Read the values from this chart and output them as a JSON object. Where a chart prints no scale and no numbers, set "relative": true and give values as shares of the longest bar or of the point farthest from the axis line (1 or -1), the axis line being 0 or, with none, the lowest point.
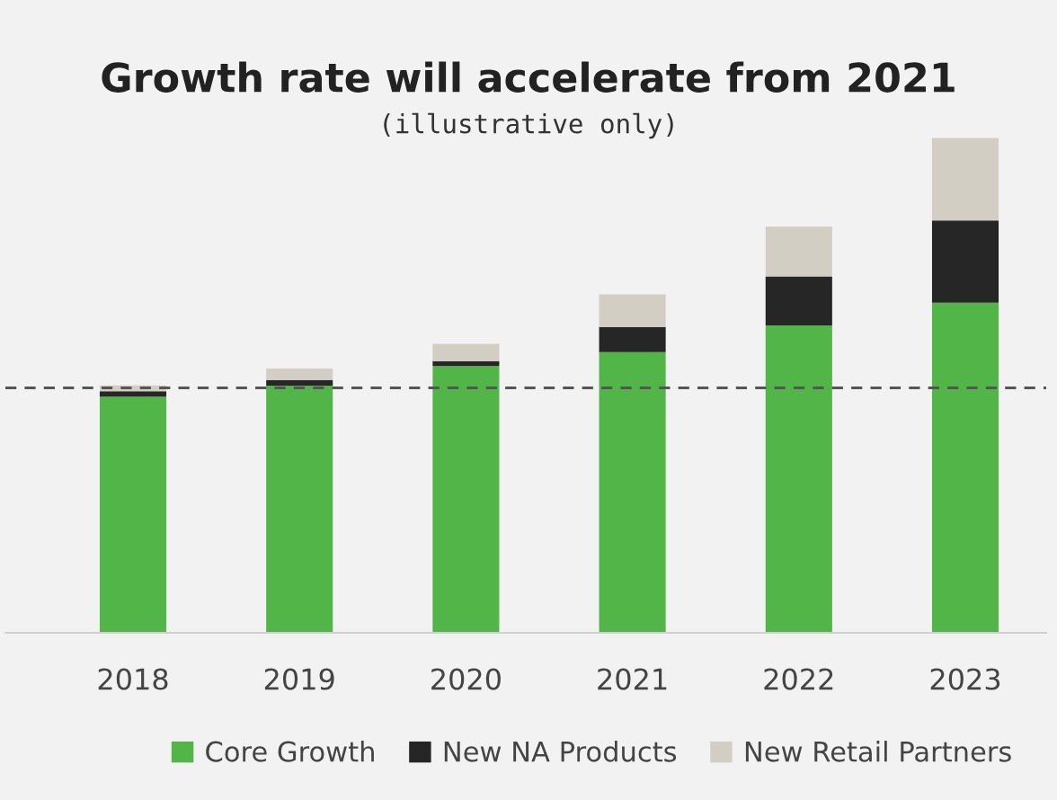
{
  "chart_data": {
    "type": "bar",
    "title": "Growth rate will accelerate from 2021",
    "subtitle": "(illustrative only)",
    "categories": [
      "2018",
      "2019",
      "2020",
      "2021",
      "2022",
      "2023"
    ],
    "stacked": true,
    "relative": true,
    "legend": "bottom",
    "grid": false,
    "series": [
      {
        "name": "Core Growth",
        "color": "#52b548",
        "values": [
          0.477,
          0.499,
          0.539,
          0.567,
          0.621,
          0.667
        ]
      },
      {
        "name": "New NA Products",
        "color": "#262626",
        "values": [
          0.011,
          0.012,
          0.01,
          0.051,
          0.099,
          0.166
        ]
      },
      {
        "name": "New Retail Partners",
        "color": "#d2cec4",
        "values": [
          0.012,
          0.023,
          0.035,
          0.066,
          0.101,
          0.167
        ]
      }
    ],
    "ref_lines": [
      {
        "axis": "y",
        "value": 0.495,
        "color": "#555555",
        "line_style": "dashed"
      }
    ]
  }
}
